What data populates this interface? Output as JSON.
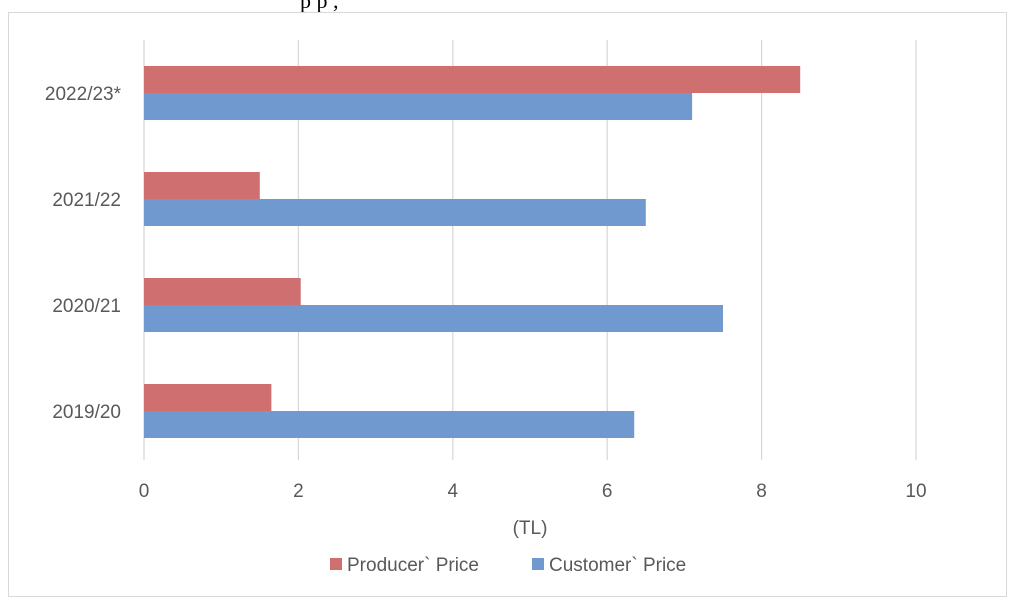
{
  "caption": {
    "text": "p        p    ,  "
  },
  "chart_data": {
    "type": "bar",
    "orientation": "horizontal",
    "categories": [
      "2019/20",
      "2020/21",
      "2021/22",
      "2022/23*"
    ],
    "series": [
      {
        "name": "Producer` Price",
        "color": "#cf6f6f",
        "values": [
          1.65,
          2.03,
          1.5,
          8.5
        ]
      },
      {
        "name": "Customer` Price",
        "color": "#7099cf",
        "values": [
          6.35,
          7.5,
          6.5,
          7.1
        ]
      }
    ],
    "xlim": [
      0,
      10
    ],
    "xticks": [
      "0",
      "2",
      "4",
      "6",
      "8",
      "10"
    ],
    "xlabel": "(TL)",
    "ylabel": "",
    "grid": true,
    "legend": "bottom"
  }
}
